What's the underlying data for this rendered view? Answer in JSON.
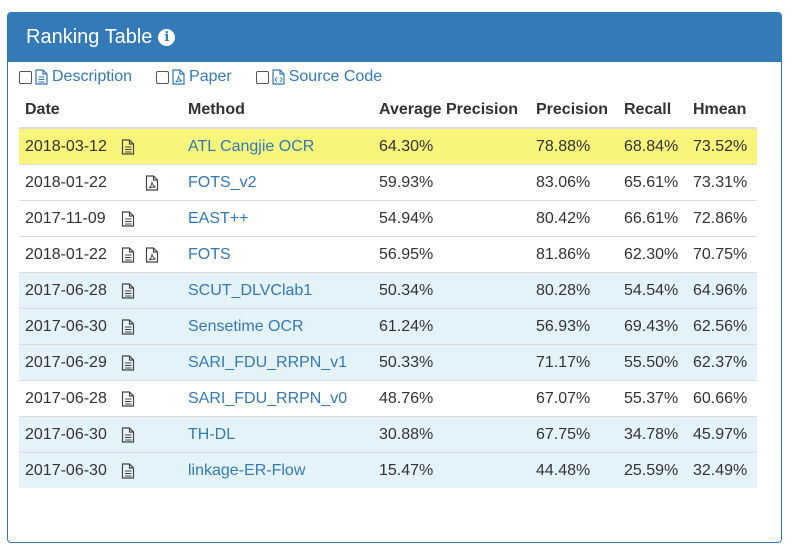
{
  "panel": {
    "title": "Ranking Table",
    "info_icon": "info-circle-icon",
    "accent_color": "#337ab7"
  },
  "toggles": [
    {
      "label": "Description",
      "icon": "file-text-icon"
    },
    {
      "label": "Paper",
      "icon": "pdf-file-icon"
    },
    {
      "label": "Source Code",
      "icon": "code-file-icon"
    }
  ],
  "columns": [
    "Date",
    "Method",
    "Average Precision",
    "Precision",
    "Recall",
    "Hmean"
  ],
  "rows": [
    {
      "date": "2018-03-12",
      "has_desc": true,
      "has_paper": false,
      "method": "ATL Cangjie OCR",
      "avg_precision": "64.30%",
      "precision": "78.88%",
      "recall": "68.84%",
      "hmean": "73.52%",
      "highlight": "yellow"
    },
    {
      "date": "2018-01-22",
      "has_desc": false,
      "has_paper": true,
      "method": "FOTS_v2",
      "avg_precision": "59.93%",
      "precision": "83.06%",
      "recall": "65.61%",
      "hmean": "73.31%",
      "highlight": "white"
    },
    {
      "date": "2017-11-09",
      "has_desc": true,
      "has_paper": false,
      "method": "EAST++",
      "avg_precision": "54.94%",
      "precision": "80.42%",
      "recall": "66.61%",
      "hmean": "72.86%",
      "highlight": "white"
    },
    {
      "date": "2018-01-22",
      "has_desc": true,
      "has_paper": true,
      "method": "FOTS",
      "avg_precision": "56.95%",
      "precision": "81.86%",
      "recall": "62.30%",
      "hmean": "70.75%",
      "highlight": "white"
    },
    {
      "date": "2017-06-28",
      "has_desc": true,
      "has_paper": false,
      "method": "SCUT_DLVClab1",
      "avg_precision": "50.34%",
      "precision": "80.28%",
      "recall": "54.54%",
      "hmean": "64.96%",
      "highlight": "blue"
    },
    {
      "date": "2017-06-30",
      "has_desc": true,
      "has_paper": false,
      "method": "Sensetime OCR",
      "avg_precision": "61.24%",
      "precision": "56.93%",
      "recall": "69.43%",
      "hmean": "62.56%",
      "highlight": "blue"
    },
    {
      "date": "2017-06-29",
      "has_desc": true,
      "has_paper": false,
      "method": "SARI_FDU_RRPN_v1",
      "avg_precision": "50.33%",
      "precision": "71.17%",
      "recall": "55.50%",
      "hmean": "62.37%",
      "highlight": "blue"
    },
    {
      "date": "2017-06-28",
      "has_desc": true,
      "has_paper": false,
      "method": "SARI_FDU_RRPN_v0",
      "avg_precision": "48.76%",
      "precision": "67.07%",
      "recall": "55.37%",
      "hmean": "60.66%",
      "highlight": "white"
    },
    {
      "date": "2017-06-30",
      "has_desc": true,
      "has_paper": false,
      "method": "TH-DL",
      "avg_precision": "30.88%",
      "precision": "67.75%",
      "recall": "34.78%",
      "hmean": "45.97%",
      "highlight": "blue"
    },
    {
      "date": "2017-06-30",
      "has_desc": true,
      "has_paper": false,
      "method": "linkage-ER-Flow",
      "avg_precision": "15.47%",
      "precision": "44.48%",
      "recall": "25.59%",
      "hmean": "32.49%",
      "highlight": "blue"
    }
  ]
}
